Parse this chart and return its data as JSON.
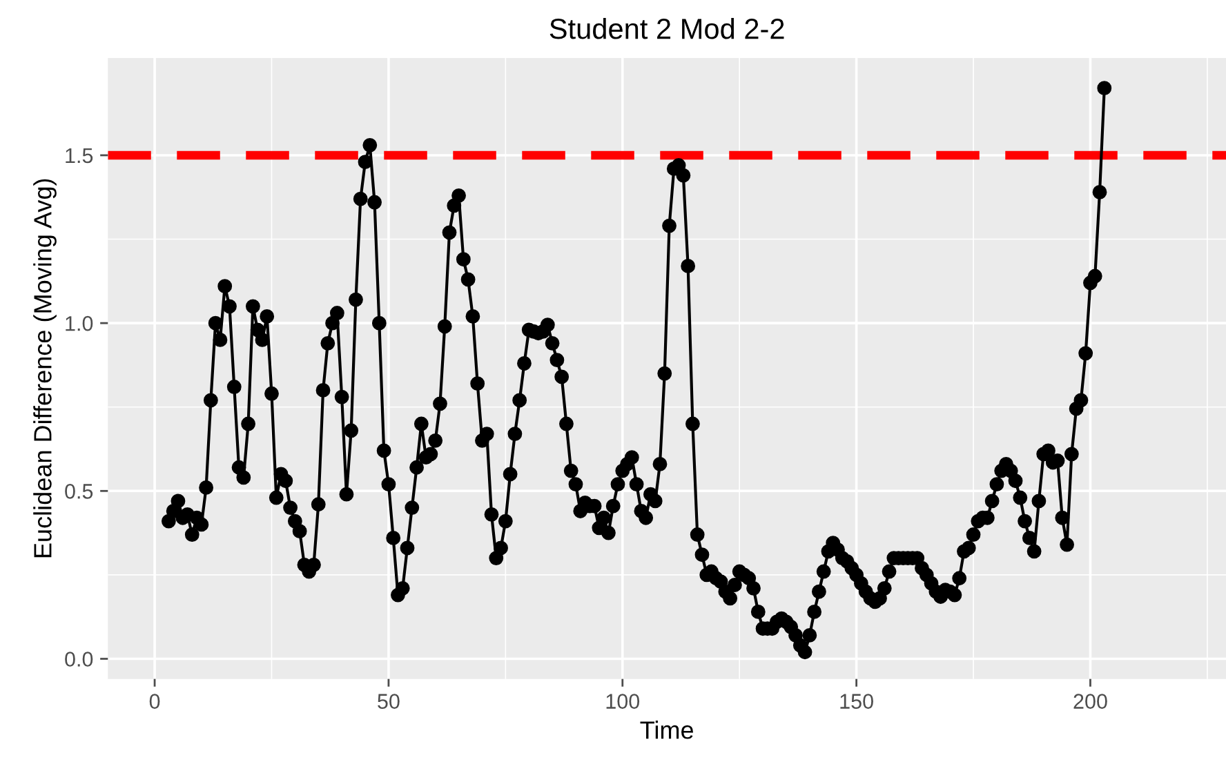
{
  "chart_data": {
    "type": "line",
    "title": "Student 2 Mod 2-2",
    "xlabel": "Time",
    "ylabel": "Euclidean Difference (Moving Avg)",
    "xlim": [
      -10,
      229
    ],
    "ylim": [
      -0.06,
      1.79
    ],
    "xticks": [
      0,
      {
        "value": 25,
        "label": null
      },
      50,
      {
        "value": 75,
        "label": null
      },
      100,
      {
        "value": 125,
        "label": null
      },
      150,
      {
        "value": 175,
        "label": null
      },
      200,
      {
        "value": 225,
        "label": null
      }
    ],
    "yticks": [
      {
        "value": 0,
        "label": "0.0"
      },
      {
        "value": 0.25,
        "label": null
      },
      {
        "value": 0.5,
        "label": "0.5"
      },
      {
        "value": 0.75,
        "label": null
      },
      {
        "value": 1.0,
        "label": "1.0"
      },
      {
        "value": 1.25,
        "label": null
      },
      {
        "value": 1.5,
        "label": "1.5"
      }
    ],
    "grid": true,
    "marker": "circle",
    "line_style": "solid",
    "legend": false,
    "ref_lines": [
      {
        "axis": "y",
        "value": 1.5,
        "label": null,
        "color": "#ff0000",
        "line_style": "dashed"
      }
    ],
    "series": [
      {
        "color": "#000000",
        "x": [
          3,
          4,
          5,
          6,
          7,
          8,
          9,
          10,
          11,
          12,
          13,
          14,
          15,
          16,
          17,
          18,
          19,
          20,
          21,
          22,
          23,
          24,
          25,
          26,
          27,
          28,
          29,
          30,
          31,
          32,
          33,
          34,
          35,
          36,
          37,
          38,
          39,
          40,
          41,
          42,
          43,
          44,
          45,
          46,
          47,
          48,
          49,
          50,
          51,
          52,
          53,
          54,
          55,
          56,
          57,
          58,
          59,
          60,
          61,
          62,
          63,
          64,
          65,
          66,
          67,
          68,
          69,
          70,
          71,
          72,
          73,
          74,
          75,
          76,
          77,
          78,
          79,
          80,
          81,
          82,
          83,
          84,
          85,
          86,
          87,
          88,
          89,
          90,
          91,
          92,
          93,
          94,
          95,
          96,
          97,
          98,
          99,
          100,
          101,
          102,
          103,
          104,
          105,
          106,
          107,
          108,
          109,
          110,
          111,
          112,
          113,
          114,
          115,
          116,
          117,
          118,
          119,
          120,
          121,
          122,
          123,
          124,
          125,
          126,
          127,
          128,
          129,
          130,
          131,
          132,
          133,
          134,
          135,
          136,
          137,
          138,
          139,
          140,
          141,
          142,
          143,
          144,
          145,
          146,
          147,
          148,
          149,
          150,
          151,
          152,
          153,
          154,
          155,
          156,
          157,
          158,
          159,
          160,
          161,
          162,
          163,
          164,
          165,
          166,
          167,
          168,
          169,
          170,
          171,
          172,
          173,
          174,
          175,
          176,
          177,
          178,
          179,
          180,
          181,
          182,
          183,
          184,
          185,
          186,
          187,
          188,
          189,
          190,
          191,
          192,
          193,
          194,
          195,
          196,
          197,
          198,
          199,
          200,
          201,
          202,
          203
        ],
        "values": [
          0.41,
          0.44,
          0.47,
          0.42,
          0.43,
          0.37,
          0.42,
          0.4,
          0.51,
          0.77,
          1.0,
          0.95,
          1.11,
          1.05,
          0.81,
          0.57,
          0.54,
          0.7,
          1.05,
          0.98,
          0.95,
          1.02,
          0.79,
          0.48,
          0.55,
          0.53,
          0.45,
          0.41,
          0.38,
          0.28,
          0.26,
          0.28,
          0.46,
          0.8,
          0.94,
          1.0,
          1.03,
          0.78,
          0.49,
          0.68,
          1.07,
          1.37,
          1.48,
          1.53,
          1.36,
          1.0,
          0.62,
          0.52,
          0.36,
          0.19,
          0.21,
          0.33,
          0.45,
          0.57,
          0.7,
          0.6,
          0.61,
          0.65,
          0.76,
          0.99,
          1.27,
          1.35,
          1.38,
          1.19,
          1.13,
          1.02,
          0.82,
          0.65,
          0.67,
          0.43,
          0.3,
          0.33,
          0.41,
          0.55,
          0.67,
          0.77,
          0.88,
          0.98,
          0.975,
          0.97,
          0.975,
          0.995,
          0.94,
          0.89,
          0.84,
          0.7,
          0.56,
          0.52,
          0.44,
          0.465,
          0.455,
          0.455,
          0.39,
          0.42,
          0.375,
          0.455,
          0.52,
          0.56,
          0.58,
          0.6,
          0.52,
          0.44,
          0.42,
          0.49,
          0.47,
          0.58,
          0.85,
          1.29,
          1.46,
          1.47,
          1.44,
          1.17,
          0.7,
          0.37,
          0.31,
          0.25,
          0.26,
          0.24,
          0.23,
          0.2,
          0.18,
          0.22,
          0.26,
          0.25,
          0.24,
          0.21,
          0.14,
          0.09,
          0.09,
          0.09,
          0.11,
          0.12,
          0.11,
          0.095,
          0.07,
          0.04,
          0.02,
          0.07,
          0.14,
          0.2,
          0.26,
          0.32,
          0.345,
          0.325,
          0.3,
          0.29,
          0.27,
          0.25,
          0.225,
          0.2,
          0.18,
          0.17,
          0.18,
          0.21,
          0.26,
          0.3,
          0.3,
          0.3,
          0.3,
          0.3,
          0.3,
          0.27,
          0.25,
          0.225,
          0.2,
          0.185,
          0.205,
          0.2,
          0.19,
          0.24,
          0.32,
          0.33,
          0.37,
          0.41,
          0.42,
          0.42,
          0.47,
          0.52,
          0.56,
          0.58,
          0.56,
          0.53,
          0.48,
          0.41,
          0.36,
          0.32,
          0.47,
          0.61,
          0.62,
          0.585,
          0.59,
          0.42,
          0.34,
          0.61,
          0.745,
          0.77,
          0.91,
          1.12,
          1.14,
          1.39,
          1.7
        ]
      }
    ]
  }
}
